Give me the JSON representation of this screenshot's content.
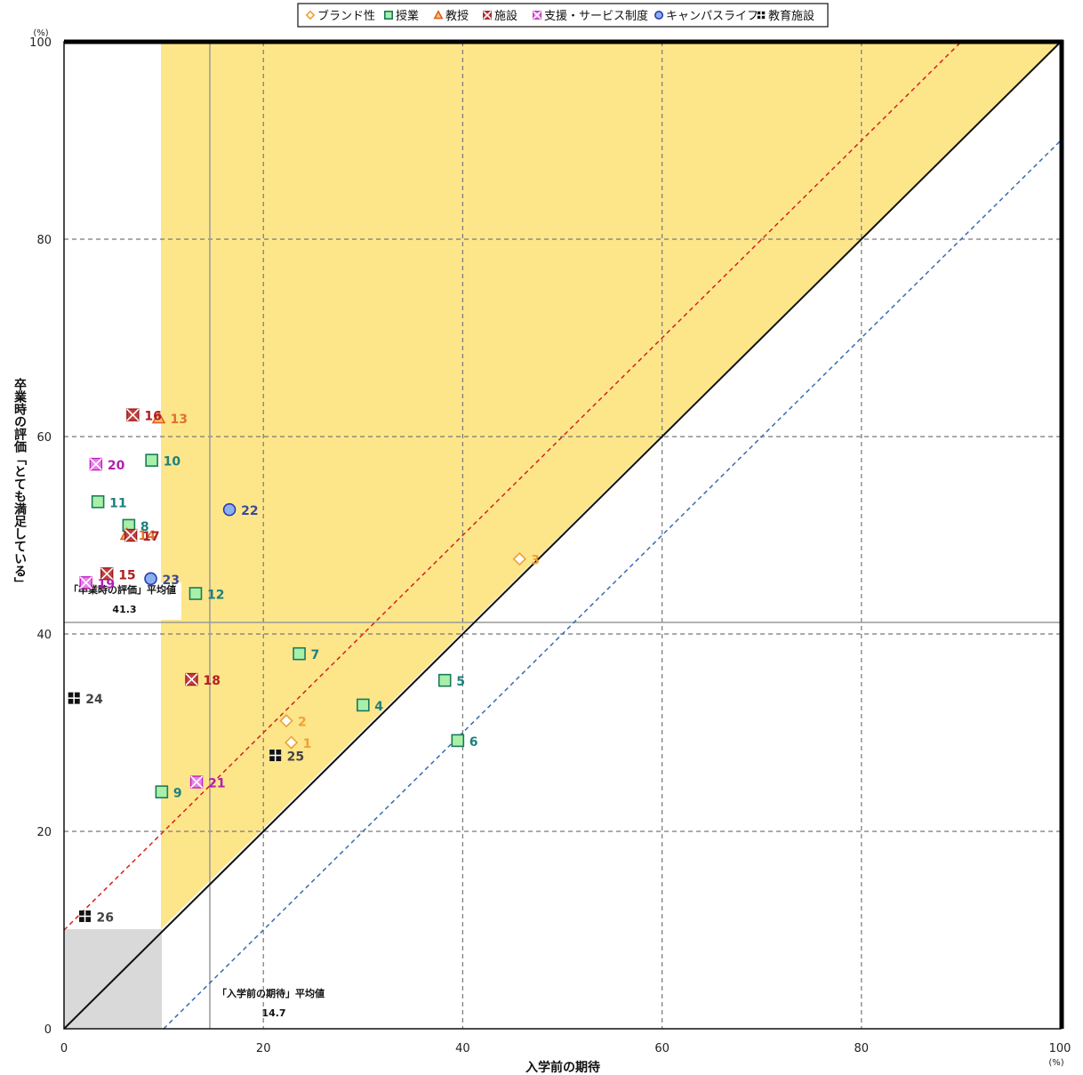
{
  "chart_data": {
    "type": "scatter",
    "xlabel": "入学前の期待",
    "ylabel": "卒業時の評価「とても満足している」",
    "x_unit": "(%)",
    "y_unit": "(%)",
    "xlim": [
      0,
      100
    ],
    "ylim": [
      0,
      100
    ],
    "x_ticks": [
      "0",
      "20",
      "40",
      "60",
      "80",
      "100"
    ],
    "y_ticks": [
      "0",
      "20",
      "40",
      "60",
      "80",
      "100"
    ],
    "grid": true,
    "legend_position": "top",
    "averages": {
      "x": {
        "label": "「入学前の期待」平均値",
        "value": "14.7"
      },
      "y": {
        "label": "「卒業時の評価」平均値",
        "value": "41.3"
      }
    },
    "series": [
      {
        "name": "ブランド性",
        "marker": "diamond",
        "color": "#f0a030",
        "text_color": "#f0a030",
        "points": [
          {
            "id": "1",
            "x": 22.8,
            "y": 29.0
          },
          {
            "id": "2",
            "x": 22.3,
            "y": 31.2
          },
          {
            "id": "3",
            "x": 45.7,
            "y": 47.6
          }
        ]
      },
      {
        "name": "授業",
        "marker": "square",
        "color": "#1a7a5a",
        "fill": "#a8f0a8",
        "text_color": "#1d8080",
        "points": [
          {
            "id": "4",
            "x": 30.0,
            "y": 32.8
          },
          {
            "id": "5",
            "x": 38.2,
            "y": 35.3
          },
          {
            "id": "6",
            "x": 39.5,
            "y": 29.2
          },
          {
            "id": "7",
            "x": 23.6,
            "y": 38.0
          },
          {
            "id": "8",
            "x": 6.5,
            "y": 51.0
          },
          {
            "id": "9",
            "x": 9.8,
            "y": 24.0
          },
          {
            "id": "10",
            "x": 8.8,
            "y": 57.6
          },
          {
            "id": "11",
            "x": 3.4,
            "y": 53.4
          },
          {
            "id": "12",
            "x": 13.2,
            "y": 44.1
          }
        ]
      },
      {
        "name": "教授",
        "marker": "triangle",
        "color": "#e06020",
        "text_color": "#e07030",
        "points": [
          {
            "id": "13",
            "x": 9.5,
            "y": 61.9
          },
          {
            "id": "14",
            "x": 6.3,
            "y": 50.1
          }
        ]
      },
      {
        "name": "施設",
        "marker": "xsquare",
        "color": "#9b1a1a",
        "fill": "#c04040",
        "text_color": "#b02020",
        "points": [
          {
            "id": "15",
            "x": 4.3,
            "y": 46.1
          },
          {
            "id": "16",
            "x": 6.9,
            "y": 62.2
          },
          {
            "id": "17",
            "x": 6.7,
            "y": 50.0
          },
          {
            "id": "18",
            "x": 12.8,
            "y": 35.4
          }
        ]
      },
      {
        "name": "支援・サービス制度",
        "marker": "xsquare",
        "color": "#c020c0",
        "fill": "#e880e8",
        "text_color": "#b020b0",
        "points": [
          {
            "id": "19",
            "x": 2.2,
            "y": 45.2
          },
          {
            "id": "20",
            "x": 3.2,
            "y": 57.2
          },
          {
            "id": "21",
            "x": 13.3,
            "y": 25.0
          }
        ]
      },
      {
        "name": "キャンパスライフ",
        "marker": "circle",
        "color": "#2a3ab0",
        "fill": "#8ab0f0",
        "text_color": "#3a4a9a",
        "points": [
          {
            "id": "22",
            "x": 16.6,
            "y": 52.6
          },
          {
            "id": "23",
            "x": 8.7,
            "y": 45.6
          }
        ]
      },
      {
        "name": "教育施設",
        "marker": "cross",
        "color": "#111111",
        "text_color": "#444444",
        "points": [
          {
            "id": "24",
            "x": 1.0,
            "y": 33.5
          },
          {
            "id": "25",
            "x": 21.2,
            "y": 27.7
          },
          {
            "id": "26",
            "x": 2.1,
            "y": 11.4
          }
        ]
      }
    ]
  }
}
